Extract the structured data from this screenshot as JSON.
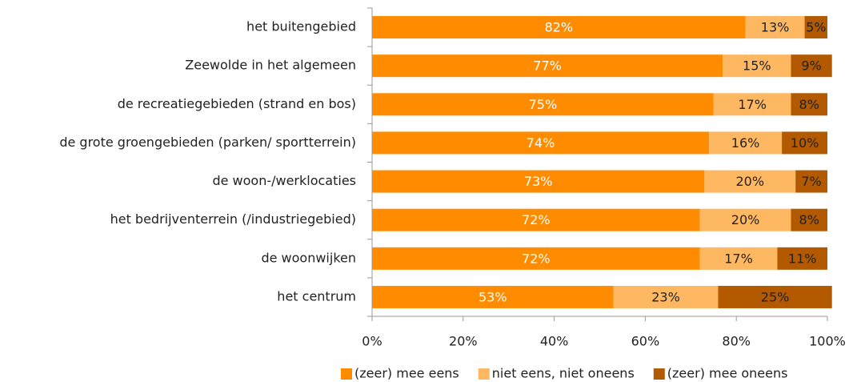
{
  "chart_data": {
    "type": "stacked-barh",
    "categories": [
      "het buitengebied",
      "Zeewolde in het algemeen",
      "de recreatiegebieden (strand en bos)",
      "de grote groengebieden (parken/ sportterrein)",
      "de woon-/werklocaties",
      "het bedrijventerrein (/industriegebied)",
      "de woonwijken",
      "het centrum"
    ],
    "series": [
      {
        "name": "(zeer) mee eens",
        "color": "#ff8c00",
        "label_color": "#ffffff",
        "values": [
          82,
          77,
          75,
          74,
          73,
          72,
          72,
          53
        ],
        "value_labels": [
          "82%",
          "77%",
          "75%",
          "74%",
          "73%",
          "72%",
          "72%",
          "53%"
        ]
      },
      {
        "name": "niet eens, niet oneens",
        "color": "#ffb862",
        "label_color": "#222222",
        "values": [
          13,
          15,
          17,
          16,
          20,
          20,
          17,
          23
        ],
        "value_labels": [
          "13%",
          "15%",
          "17%",
          "16%",
          "20%",
          "20%",
          "17%",
          "23%"
        ]
      },
      {
        "name": "(zeer) mee oneens",
        "color": "#b35900",
        "label_color": "#222222",
        "values": [
          5,
          9,
          8,
          10,
          7,
          8,
          11,
          25
        ],
        "value_labels": [
          "5%",
          "9%",
          "8%",
          "10%",
          "7%",
          "8%",
          "11%",
          "25%"
        ]
      }
    ],
    "xlim": [
      0,
      100
    ],
    "xticks": [
      {
        "value": 0,
        "label": "0%"
      },
      {
        "value": 20,
        "label": "20%"
      },
      {
        "value": 40,
        "label": "40%"
      },
      {
        "value": 60,
        "label": "60%"
      },
      {
        "value": 80,
        "label": "80%"
      },
      {
        "value": 100,
        "label": "100%"
      }
    ],
    "legend": "bottom"
  }
}
